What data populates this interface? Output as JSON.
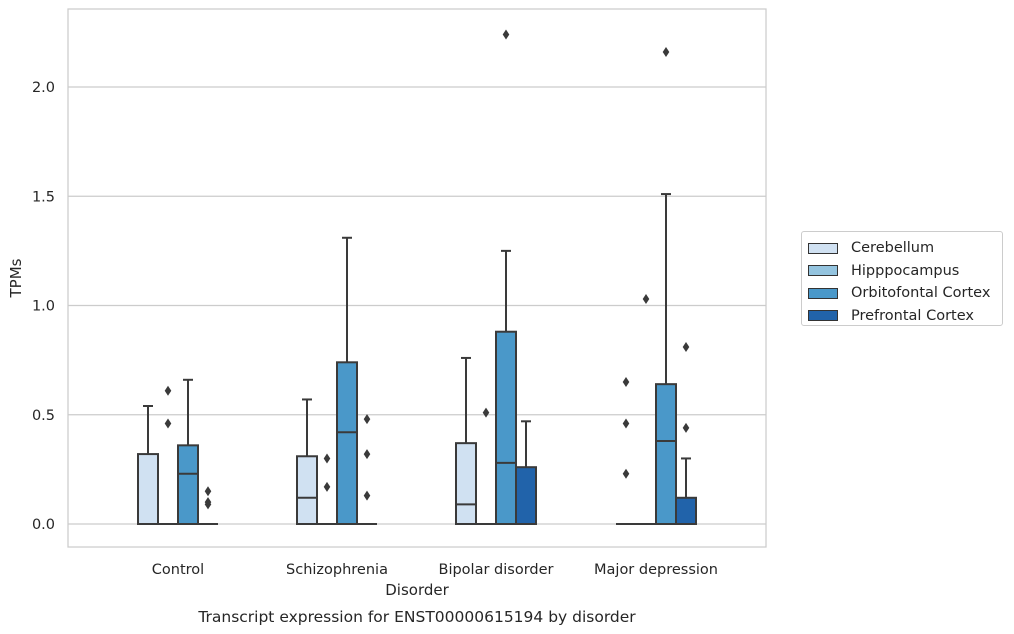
{
  "chart_data": {
    "type": "box",
    "title": "Transcript expression for ENST00000615194 by disorder",
    "xlabel": "Disorder",
    "ylabel": "TPMs",
    "ylim": [
      -0.11,
      2.36
    ],
    "yticks": [
      "0.0",
      "0.5",
      "1.0",
      "1.5",
      "2.0"
    ],
    "grid": true,
    "legend_position": "right",
    "categories": [
      "Control",
      "Schizophrenia",
      "Bipolar disorder",
      "Major depression"
    ],
    "series": [
      {
        "name": "Cerebellum",
        "color": "#d0e1f2",
        "boxes": [
          {
            "q1": 0,
            "median": 0,
            "q3": 0.32,
            "whisker_low": 0,
            "whisker_high": 0.54,
            "outliers": []
          },
          {
            "q1": 0,
            "median": 0.12,
            "q3": 0.31,
            "whisker_low": 0,
            "whisker_high": 0.57,
            "outliers": []
          },
          {
            "q1": 0,
            "median": 0.09,
            "q3": 0.37,
            "whisker_low": 0,
            "whisker_high": 0.76,
            "outliers": []
          },
          {
            "q1": 0,
            "median": 0,
            "q3": 0,
            "whisker_low": 0,
            "whisker_high": 0,
            "outliers": [
              0.23,
              0.46,
              0.65
            ]
          }
        ]
      },
      {
        "name": "Hipppocampus",
        "color": "#94c4df",
        "boxes": [
          {
            "q1": 0,
            "median": 0,
            "q3": 0,
            "whisker_low": 0,
            "whisker_high": 0,
            "outliers": [
              0.46,
              0.61
            ]
          },
          {
            "q1": 0,
            "median": 0,
            "q3": 0,
            "whisker_low": 0,
            "whisker_high": 0,
            "outliers": [
              0.17,
              0.3
            ]
          },
          {
            "q1": 0,
            "median": 0,
            "q3": 0,
            "whisker_low": 0,
            "whisker_high": 0,
            "outliers": [
              0.51
            ]
          },
          {
            "q1": 0,
            "median": 0,
            "q3": 0,
            "whisker_low": 0,
            "whisker_high": 0,
            "outliers": [
              1.03
            ]
          }
        ]
      },
      {
        "name": "Orbitofontal Cortex",
        "color": "#4a98c9",
        "boxes": [
          {
            "q1": 0,
            "median": 0.23,
            "q3": 0.36,
            "whisker_low": 0,
            "whisker_high": 0.66,
            "outliers": []
          },
          {
            "q1": 0,
            "median": 0.42,
            "q3": 0.74,
            "whisker_low": 0,
            "whisker_high": 1.31,
            "outliers": []
          },
          {
            "q1": 0,
            "median": 0.28,
            "q3": 0.88,
            "whisker_low": 0,
            "whisker_high": 1.25,
            "outliers": [
              2.24
            ]
          },
          {
            "q1": 0,
            "median": 0.38,
            "q3": 0.64,
            "whisker_low": 0,
            "whisker_high": 1.51,
            "outliers": [
              2.16
            ]
          }
        ]
      },
      {
        "name": "Prefrontal Cortex",
        "color": "#2163aa",
        "boxes": [
          {
            "q1": 0,
            "median": 0,
            "q3": 0,
            "whisker_low": 0,
            "whisker_high": 0,
            "outliers": [
              0.09,
              0.1,
              0.15
            ]
          },
          {
            "q1": 0,
            "median": 0,
            "q3": 0,
            "whisker_low": 0,
            "whisker_high": 0,
            "outliers": [
              0.13,
              0.32,
              0.48
            ]
          },
          {
            "q1": 0,
            "median": 0,
            "q3": 0.26,
            "whisker_low": 0,
            "whisker_high": 0.47,
            "outliers": []
          },
          {
            "q1": 0,
            "median": 0,
            "q3": 0.12,
            "whisker_low": 0,
            "whisker_high": 0.3,
            "outliers": [
              0.44,
              0.81
            ]
          }
        ]
      }
    ]
  }
}
